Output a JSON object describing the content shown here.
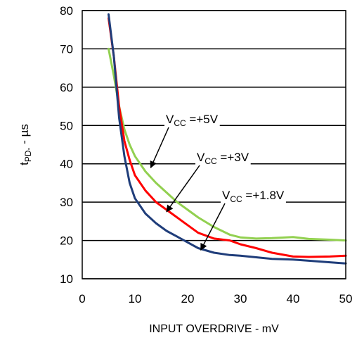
{
  "chart_data": {
    "type": "line",
    "xlabel": "INPUT OVERDRIVE - mV",
    "ylabel_main": "t",
    "ylabel_sub": "PD-",
    "ylabel_rest": " - µs",
    "xlim": [
      0,
      50
    ],
    "ylim": [
      10,
      80
    ],
    "x_ticks": [
      "0",
      "10",
      "20",
      "30",
      "40",
      "50"
    ],
    "y_ticks": [
      "10",
      "20",
      "30",
      "40",
      "50",
      "60",
      "70",
      "80"
    ],
    "grid": true,
    "series": [
      {
        "name": "VCC =+5V",
        "color": "#92d050",
        "points": [
          [
            5,
            70
          ],
          [
            6,
            63
          ],
          [
            7,
            55
          ],
          [
            8,
            49
          ],
          [
            9,
            45
          ],
          [
            10,
            42
          ],
          [
            12,
            38
          ],
          [
            14,
            35
          ],
          [
            16,
            32.5
          ],
          [
            18,
            30
          ],
          [
            20,
            28
          ],
          [
            22,
            26
          ],
          [
            25,
            23.5
          ],
          [
            28,
            21.5
          ],
          [
            30,
            20.8
          ],
          [
            33,
            20.5
          ],
          [
            36,
            20.6
          ],
          [
            40,
            20.9
          ],
          [
            43,
            20.4
          ],
          [
            47,
            20.2
          ],
          [
            50,
            20
          ]
        ]
      },
      {
        "name": "VCC =+3V",
        "color": "#ff0000",
        "points": [
          [
            5,
            78
          ],
          [
            6,
            68
          ],
          [
            7,
            55
          ],
          [
            8,
            46
          ],
          [
            9,
            41
          ],
          [
            10,
            37
          ],
          [
            12,
            33
          ],
          [
            14,
            30
          ],
          [
            16,
            28
          ],
          [
            18,
            26
          ],
          [
            20,
            24
          ],
          [
            22,
            22
          ],
          [
            25,
            20.5
          ],
          [
            28,
            20
          ],
          [
            30,
            19
          ],
          [
            33,
            18
          ],
          [
            36,
            16.8
          ],
          [
            40,
            15.8
          ],
          [
            43,
            15.7
          ],
          [
            47,
            15.8
          ],
          [
            50,
            16
          ]
        ]
      },
      {
        "name": "VCC =+1.8V",
        "color": "#1f3d7a",
        "points": [
          [
            5,
            79
          ],
          [
            6,
            68
          ],
          [
            7,
            52
          ],
          [
            8,
            42
          ],
          [
            9,
            35
          ],
          [
            10,
            31
          ],
          [
            12,
            27
          ],
          [
            14,
            24.5
          ],
          [
            16,
            22.5
          ],
          [
            18,
            21
          ],
          [
            20,
            19.5
          ],
          [
            22,
            18
          ],
          [
            25,
            16.8
          ],
          [
            28,
            16.2
          ],
          [
            30,
            16
          ],
          [
            33,
            15.6
          ],
          [
            36,
            15.2
          ],
          [
            40,
            15
          ],
          [
            43,
            14.7
          ],
          [
            47,
            14.3
          ],
          [
            50,
            14
          ]
        ]
      }
    ],
    "annotations": [
      {
        "main": "V",
        "sub": "CC",
        "rest": " =+5V",
        "target": [
          13,
          39
        ]
      },
      {
        "main": "V",
        "sub": "CC",
        "rest": " =+3V",
        "target": [
          16,
          27.5
        ]
      },
      {
        "main": "V",
        "sub": "CC",
        "rest": " =+1.8V",
        "target": [
          22.5,
          17.5
        ]
      }
    ]
  }
}
